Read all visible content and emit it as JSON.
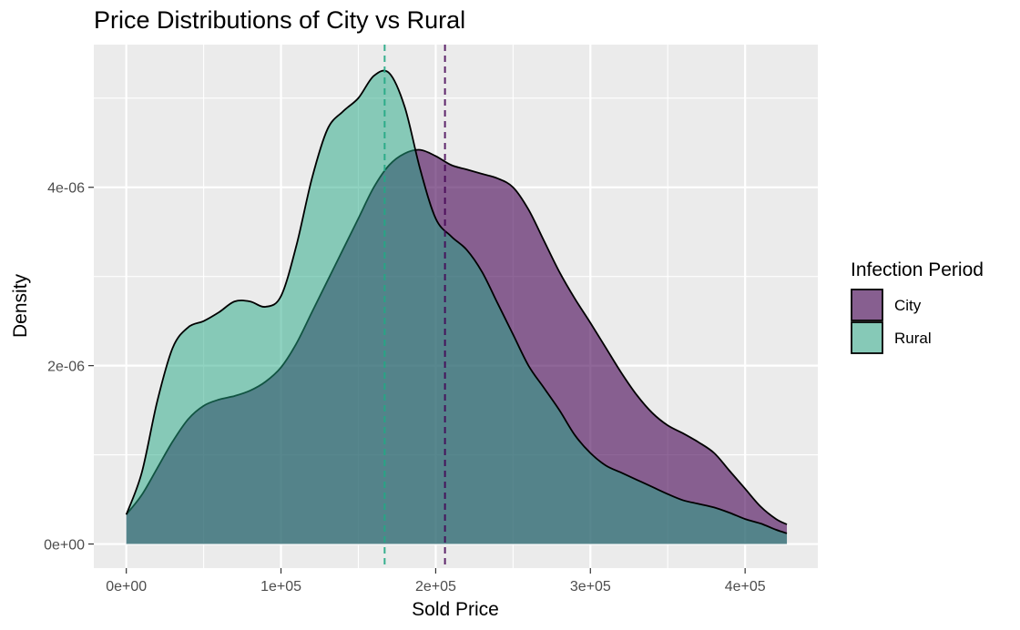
{
  "chart_data": {
    "type": "area",
    "title": "Price Distributions of City vs Rural",
    "xlabel": "Sold Price",
    "ylabel": "Density",
    "xlim": [
      -21000,
      447000
    ],
    "ylim": [
      -2.7e-07,
      5.6e-06
    ],
    "x_ticks": [
      0,
      50000,
      100000,
      150000,
      200000,
      250000,
      300000,
      350000,
      400000
    ],
    "x_tick_labels": [
      "0e+00",
      "",
      "1e+05",
      "",
      "2e+05",
      "",
      "3e+05",
      "",
      "4e+05"
    ],
    "y_ticks": [
      0,
      1e-06,
      2e-06,
      3e-06,
      4e-06,
      5e-06
    ],
    "y_tick_labels": [
      "0e+00",
      "",
      "2e-06",
      "",
      "4e-06",
      ""
    ],
    "grid": true,
    "legend": {
      "title": "Infection Period",
      "position": "right",
      "entries": [
        {
          "label": "City",
          "color": "#440154"
        },
        {
          "label": "Rural",
          "color": "#22A884"
        }
      ]
    },
    "series": [
      {
        "name": "City",
        "fill": "#440154",
        "alpha": 0.6,
        "mean_line": 206000,
        "points": [
          [
            0,
            3.3e-07
          ],
          [
            10000,
            5.5e-07
          ],
          [
            20000,
            8.5e-07
          ],
          [
            30000,
            1.15e-06
          ],
          [
            40000,
            1.4e-06
          ],
          [
            50000,
            1.55e-06
          ],
          [
            60000,
            1.62e-06
          ],
          [
            70000,
            1.66e-06
          ],
          [
            80000,
            1.72e-06
          ],
          [
            90000,
            1.82e-06
          ],
          [
            100000,
            1.98e-06
          ],
          [
            110000,
            2.25e-06
          ],
          [
            120000,
            2.6e-06
          ],
          [
            130000,
            2.95e-06
          ],
          [
            140000,
            3.3e-06
          ],
          [
            150000,
            3.65e-06
          ],
          [
            160000,
            4e-06
          ],
          [
            170000,
            4.25e-06
          ],
          [
            180000,
            4.38e-06
          ],
          [
            190000,
            4.42e-06
          ],
          [
            200000,
            4.35e-06
          ],
          [
            210000,
            4.25e-06
          ],
          [
            220000,
            4.2e-06
          ],
          [
            230000,
            4.15e-06
          ],
          [
            240000,
            4.1e-06
          ],
          [
            250000,
            4e-06
          ],
          [
            260000,
            3.75e-06
          ],
          [
            270000,
            3.4e-06
          ],
          [
            280000,
            3.05e-06
          ],
          [
            290000,
            2.75e-06
          ],
          [
            300000,
            2.48e-06
          ],
          [
            310000,
            2.2e-06
          ],
          [
            320000,
            1.92e-06
          ],
          [
            330000,
            1.67e-06
          ],
          [
            340000,
            1.47e-06
          ],
          [
            350000,
            1.33e-06
          ],
          [
            360000,
            1.24e-06
          ],
          [
            370000,
            1.14e-06
          ],
          [
            380000,
            1.02e-06
          ],
          [
            390000,
            8.2e-07
          ],
          [
            400000,
            6.2e-07
          ],
          [
            410000,
            4.2e-07
          ],
          [
            420000,
            2.8e-07
          ],
          [
            427000,
            2.2e-07
          ]
        ]
      },
      {
        "name": "Rural",
        "fill": "#22A884",
        "alpha": 0.5,
        "mean_line": 167000,
        "points": [
          [
            0,
            3.3e-07
          ],
          [
            10000,
            8e-07
          ],
          [
            20000,
            1.6e-06
          ],
          [
            30000,
            2.2e-06
          ],
          [
            40000,
            2.43e-06
          ],
          [
            50000,
            2.5e-06
          ],
          [
            60000,
            2.6e-06
          ],
          [
            70000,
            2.72e-06
          ],
          [
            80000,
            2.72e-06
          ],
          [
            90000,
            2.66e-06
          ],
          [
            100000,
            2.78e-06
          ],
          [
            110000,
            3.35e-06
          ],
          [
            120000,
            4.1e-06
          ],
          [
            130000,
            4.65e-06
          ],
          [
            140000,
            4.85e-06
          ],
          [
            150000,
            5e-06
          ],
          [
            160000,
            5.25e-06
          ],
          [
            170000,
            5.28e-06
          ],
          [
            180000,
            4.9e-06
          ],
          [
            190000,
            4.2e-06
          ],
          [
            200000,
            3.65e-06
          ],
          [
            210000,
            3.45e-06
          ],
          [
            220000,
            3.3e-06
          ],
          [
            230000,
            3.05e-06
          ],
          [
            240000,
            2.7e-06
          ],
          [
            250000,
            2.35e-06
          ],
          [
            260000,
            2e-06
          ],
          [
            270000,
            1.75e-06
          ],
          [
            280000,
            1.5e-06
          ],
          [
            290000,
            1.22e-06
          ],
          [
            300000,
            1.02e-06
          ],
          [
            310000,
            8.8e-07
          ],
          [
            320000,
            8e-07
          ],
          [
            330000,
            7.2e-07
          ],
          [
            340000,
            6.4e-07
          ],
          [
            350000,
            5.6e-07
          ],
          [
            360000,
            4.9e-07
          ],
          [
            370000,
            4.5e-07
          ],
          [
            380000,
            4.1e-07
          ],
          [
            390000,
            3.5e-07
          ],
          [
            400000,
            2.8e-07
          ],
          [
            410000,
            2.3e-07
          ],
          [
            420000,
            1.6e-07
          ],
          [
            427000,
            1.2e-07
          ]
        ]
      }
    ]
  }
}
